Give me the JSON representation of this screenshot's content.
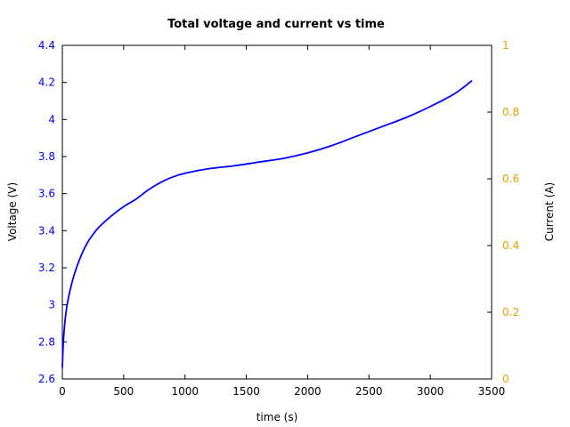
{
  "chart_data": {
    "type": "line",
    "title": "Total voltage and current vs time",
    "xlabel": "time (s)",
    "ylabel": "Voltage (V)",
    "ylabel_right": "Current (A)",
    "xlim": [
      0,
      3500
    ],
    "ylim": [
      2.6,
      4.4
    ],
    "ylim_right": [
      0,
      1
    ],
    "grid": false,
    "x_ticks": [
      "0",
      "500",
      "1000",
      "1500",
      "2000",
      "2500",
      "3000",
      "3500"
    ],
    "y_ticks": [
      "2.6",
      "2.8",
      "3",
      "3.2",
      "3.4",
      "3.6",
      "3.8",
      "4",
      "4.2",
      "4.4"
    ],
    "y_ticks_right": [
      "0",
      "0.2",
      "0.4",
      "0.6",
      "0.8",
      "1"
    ],
    "colors": {
      "voltage": "#0000ff",
      "left_axis_ticks": "#0000ff",
      "right_axis_ticks": "#e6a100",
      "axes": "#000000"
    },
    "series": [
      {
        "axis": "left",
        "color": "#0000ff",
        "x": [
          0,
          10,
          30,
          60,
          100,
          150,
          200,
          250,
          300,
          400,
          500,
          600,
          700,
          800,
          900,
          1000,
          1200,
          1400,
          1600,
          1800,
          2000,
          2200,
          2400,
          2600,
          2800,
          3000,
          3200,
          3340
        ],
        "y": [
          2.66,
          2.82,
          2.96,
          3.07,
          3.17,
          3.26,
          3.33,
          3.38,
          3.42,
          3.48,
          3.53,
          3.57,
          3.62,
          3.66,
          3.69,
          3.71,
          3.735,
          3.75,
          3.77,
          3.79,
          3.82,
          3.86,
          3.91,
          3.96,
          4.01,
          4.07,
          4.14,
          4.21
        ]
      }
    ]
  }
}
